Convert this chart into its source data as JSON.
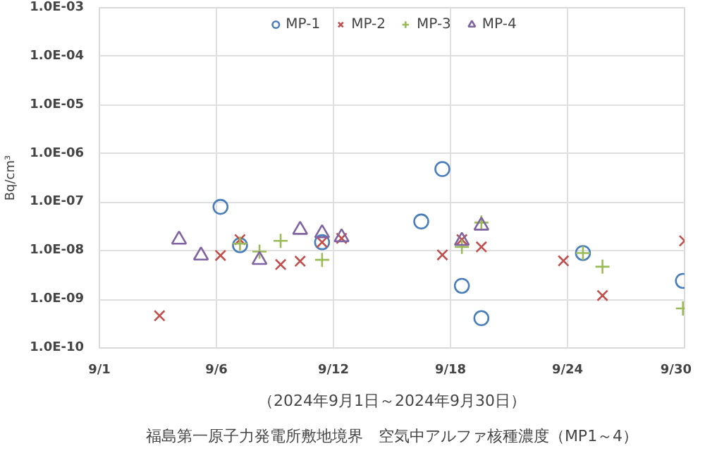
{
  "chart_data": {
    "type": "scatter",
    "title": "福島第一原子力発電所敷地境界　空気中アルファ核種濃度（MP1～4）",
    "subtitle": "（2024年9月1日～2024年9月30日）",
    "ylabel": "Bq/cm³",
    "log": "y",
    "xlim": [
      "2024-08-31",
      "2024-09-30"
    ],
    "xticks": [
      {
        "value": "2024-08-31",
        "label": "9/1"
      },
      {
        "value": "2024-09-06",
        "label": "9/6"
      },
      {
        "value": "2024-09-12",
        "label": "9/12"
      },
      {
        "value": "2024-09-18",
        "label": "9/18"
      },
      {
        "value": "2024-09-24",
        "label": "9/24"
      },
      {
        "value": "2024-09-30",
        "label": "9/30"
      }
    ],
    "ylim": [
      1e-10,
      0.001
    ],
    "yticks": [
      {
        "value": 1e-10,
        "label": "1.0E-10"
      },
      {
        "value": 1e-09,
        "label": "1.0E-09"
      },
      {
        "value": 1e-08,
        "label": "1.0E-08"
      },
      {
        "value": 1e-07,
        "label": "1.0E-07"
      },
      {
        "value": 1e-06,
        "label": "1.0E-06"
      },
      {
        "value": 1e-05,
        "label": "1.0E-05"
      },
      {
        "value": 0.0001,
        "label": "1.0E-04"
      },
      {
        "value": 0.001,
        "label": "1.0E-03"
      }
    ],
    "grid": true,
    "legend": "top",
    "series": [
      {
        "name": "MP-1",
        "color": "#4a7ebb",
        "marker": "circle",
        "x": [
          "2024-09-06T05:00",
          "2024-09-07T05:00",
          "2024-09-11T10:00",
          "2024-09-16T12:00",
          "2024-09-17T14:00",
          "2024-09-18T14:00",
          "2024-09-19T14:00",
          "2024-09-24T19:00",
          "2024-09-29T22:00"
        ],
        "values": [
          8e-08,
          1.3e-08,
          1.5e-08,
          4e-08,
          4.8e-07,
          1.9e-09,
          4.1e-10,
          9e-09,
          2.4e-09
        ]
      },
      {
        "name": "MP-2",
        "color": "#c0504d",
        "marker": "x",
        "x": [
          "2024-09-03T02:00",
          "2024-09-06T05:00",
          "2024-09-07T05:00",
          "2024-09-09T07:00",
          "2024-09-10T07:00",
          "2024-09-11T10:00",
          "2024-09-12T10:00",
          "2024-09-17T14:00",
          "2024-09-18T14:00",
          "2024-09-19T14:00",
          "2024-09-23T19:00",
          "2024-09-25T19:00",
          "2024-09-30T00:00"
        ],
        "values": [
          4.6e-10,
          8e-09,
          1.7e-08,
          5.2e-09,
          6.1e-09,
          1.5e-08,
          1.8e-08,
          8.2e-09,
          1.7e-08,
          1.2e-08,
          6.2e-09,
          1.2e-09,
          1.6e-08
        ]
      },
      {
        "name": "MP-3",
        "color": "#9bbb59",
        "marker": "cross",
        "x": [
          "2024-09-07T05:00",
          "2024-09-08T05:00",
          "2024-09-09T07:00",
          "2024-09-11T10:00",
          "2024-09-18T14:00",
          "2024-09-19T14:00",
          "2024-09-24T19:00",
          "2024-09-25T19:00",
          "2024-09-29T22:00"
        ],
        "values": [
          1.4e-08,
          9.6e-09,
          1.6e-08,
          6.5e-09,
          1.2e-08,
          3.8e-08,
          9e-09,
          4.7e-09,
          6.5e-10
        ]
      },
      {
        "name": "MP-4",
        "color": "#8064a2",
        "marker": "triangle",
        "x": [
          "2024-09-04T02:00",
          "2024-09-05T05:00",
          "2024-09-08T05:00",
          "2024-09-10T07:00",
          "2024-09-11T10:00",
          "2024-09-12T10:00",
          "2024-09-18T14:00",
          "2024-09-19T14:00"
        ],
        "values": [
          1.7e-08,
          8e-09,
          6.5e-09,
          2.7e-08,
          2.3e-08,
          1.9e-08,
          1.6e-08,
          3.3e-08
        ]
      }
    ]
  }
}
